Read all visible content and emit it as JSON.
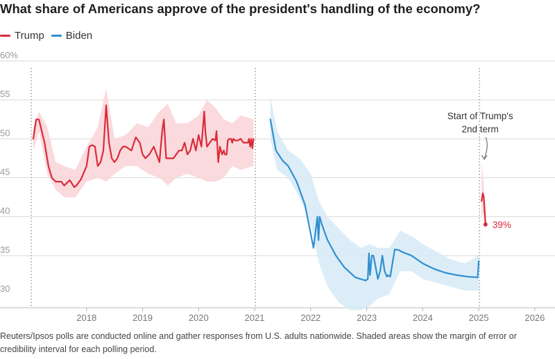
{
  "chart_data": {
    "type": "line",
    "title": "What share of Americans approve of the president's handling of the economy?",
    "footnote": "Reuters/Ipsos polls are conducted online and gather responses from U.S. adults nationwide. Shaded areas show the margin of error or credibility interval for each polling period.",
    "ylim": [
      30,
      60
    ],
    "yticks": [
      30,
      35,
      40,
      45,
      50,
      55,
      60
    ],
    "ytick_labels": [
      "30",
      "35",
      "40",
      "45",
      "50",
      "55",
      "60%"
    ],
    "xlim": [
      2017.0,
      2026.15
    ],
    "xticks": [
      2018,
      2019,
      2020,
      2021,
      2022,
      2023,
      2024,
      2025,
      2026
    ],
    "xtick_labels": [
      "2018",
      "2019",
      "2020",
      "2021",
      "2022",
      "2023",
      "2024",
      "2025",
      "2026"
    ],
    "term_starts": [
      2017.05,
      2021.05,
      2025.05
    ],
    "grid": true,
    "legend_position": "top-left",
    "colors": {
      "trump": "#d92b3a",
      "biden": "#2f8fd0",
      "trump_band": "#f9d4d7",
      "biden_band": "#d6eaf7",
      "grid": "#d9d9d9"
    },
    "annotation": {
      "text_line1": "Start of Trump's",
      "text_line2": "2nd term",
      "x": 2025.05
    },
    "end_label": {
      "text": "39%",
      "x": 2025.12,
      "y": 39
    },
    "series": [
      {
        "name": "Trump",
        "color": "#d92b3a",
        "segments": [
          {
            "x": [
              2017.05,
              2017.1,
              2017.15,
              2017.25,
              2017.32,
              2017.38,
              2017.45,
              2017.55,
              2017.6,
              2017.7,
              2017.78,
              2017.82,
              2017.9,
              2018.0,
              2018.05,
              2018.1,
              2018.15,
              2018.2,
              2018.25,
              2018.3,
              2018.35,
              2018.4,
              2018.45,
              2018.5,
              2018.55,
              2018.6,
              2018.65,
              2018.7,
              2018.8,
              2018.88,
              2018.95,
              2019.0,
              2019.05,
              2019.12,
              2019.2,
              2019.3,
              2019.35,
              2019.38,
              2019.42,
              2019.5,
              2019.55,
              2019.6,
              2019.65,
              2019.7,
              2019.75,
              2019.8,
              2019.85,
              2019.9,
              2019.95,
              2020.0,
              2020.05,
              2020.1,
              2020.12,
              2020.15,
              2020.2,
              2020.25,
              2020.3,
              2020.32,
              2020.35,
              2020.38,
              2020.42,
              2020.45,
              2020.47,
              2020.5,
              2020.52,
              2020.55,
              2020.58,
              2020.6,
              2020.62,
              2020.65,
              2020.7,
              2020.75,
              2020.8,
              2020.88,
              2020.9,
              2020.92,
              2020.94,
              2020.96,
              2020.98
            ],
            "y": [
              50,
              52.5,
              52.5,
              49.5,
              46.5,
              45,
              44.5,
              44.5,
              44,
              44.7,
              43.8,
              44,
              44.8,
              46.5,
              49,
              49.2,
              49,
              46.5,
              47,
              48.5,
              54.3,
              49.5,
              47.5,
              47,
              47.5,
              48.5,
              49,
              49,
              48.5,
              50.2,
              49.5,
              48,
              47.5,
              48,
              49,
              47,
              51,
              52.5,
              47.5,
              47.5,
              47.5,
              48,
              48.5,
              48.5,
              49.5,
              48,
              48.5,
              50,
              48.5,
              50.5,
              49,
              53.5,
              51,
              49,
              49.5,
              50,
              49.8,
              51,
              47,
              49,
              48,
              48.5,
              48,
              48,
              49.8,
              50,
              50,
              49.5,
              50,
              49.8,
              49.8,
              50,
              49.5,
              49.5,
              50,
              49,
              50,
              48.8,
              50
            ]
          },
          {
            "x": [
              2025.05,
              2025.07,
              2025.09,
              2025.12
            ],
            "y": [
              42,
              43,
              42.5,
              39
            ]
          }
        ]
      },
      {
        "name": "Biden",
        "color": "#2f8fd0",
        "segments": [
          {
            "x": [
              2021.28,
              2021.38,
              2021.5,
              2021.6,
              2021.75,
              2021.9,
              2022.05,
              2022.12,
              2022.14,
              2022.16,
              2022.18,
              2022.2,
              2022.3,
              2022.45,
              2022.6,
              2022.8,
              2022.98,
              2023.02,
              2023.04,
              2023.06,
              2023.09,
              2023.12,
              2023.16,
              2023.2,
              2023.24,
              2023.28,
              2023.32,
              2023.36,
              2023.38,
              2023.42,
              2023.5,
              2023.58,
              2023.62,
              2023.8,
              2024.0,
              2024.2,
              2024.4,
              2024.6,
              2024.8,
              2024.98,
              2025.0
            ],
            "y": [
              52.5,
              48.5,
              47.2,
              46.5,
              44.5,
              41.5,
              36,
              40,
              37,
              40,
              39.5,
              39,
              37,
              35,
              33.5,
              32.2,
              31.8,
              32,
              35.3,
              32.5,
              35,
              35,
              33.5,
              32,
              33,
              35,
              33,
              32.3,
              32.5,
              32.3,
              35.8,
              35.7,
              35.5,
              35,
              34,
              33.3,
              32.8,
              32.5,
              32.3,
              32.2,
              34.3
            ]
          }
        ]
      }
    ],
    "bands": [
      {
        "series": "Trump",
        "x": [
          2017.05,
          2017.15,
          2017.3,
          2017.45,
          2017.6,
          2017.8,
          2018.0,
          2018.2,
          2018.35,
          2018.5,
          2018.7,
          2018.9,
          2019.1,
          2019.3,
          2019.45,
          2019.6,
          2019.8,
          2020.0,
          2020.15,
          2020.3,
          2020.45,
          2020.6,
          2020.75,
          2020.98
        ],
        "upper": [
          51.5,
          53.5,
          51.5,
          47,
          46.5,
          46,
          49,
          51.5,
          56.5,
          50,
          50.5,
          52,
          51.5,
          53.5,
          54.5,
          52,
          52,
          53,
          55,
          54,
          52.5,
          52,
          53,
          52.5
        ],
        "lower": [
          48.5,
          51,
          45.5,
          43.5,
          42.5,
          42.5,
          44.5,
          45,
          44.5,
          45.5,
          46.5,
          46.5,
          45.5,
          45,
          44,
          45,
          45.5,
          45,
          44.5,
          44.5,
          45,
          46.5,
          46,
          46.5
        ]
      },
      {
        "series": "Trump",
        "x": [
          2025.05,
          2025.08,
          2025.12
        ],
        "upper": [
          47,
          45,
          41
        ],
        "lower": [
          40,
          40.5,
          38
        ]
      },
      {
        "series": "Biden",
        "x": [
          2021.28,
          2021.4,
          2021.6,
          2021.8,
          2022.0,
          2022.15,
          2022.3,
          2022.5,
          2022.7,
          2022.9,
          2023.05,
          2023.2,
          2023.4,
          2023.6,
          2023.8,
          2024.0,
          2024.25,
          2024.5,
          2024.75,
          2025.0
        ],
        "upper": [
          55.5,
          51,
          48.5,
          47.5,
          45.5,
          42,
          40,
          38.5,
          37,
          36,
          36.5,
          36,
          36,
          38.2,
          37.5,
          36.5,
          35.5,
          34.5,
          34,
          35
        ],
        "lower": [
          50,
          46,
          45,
          42.5,
          39,
          34,
          31,
          29,
          28,
          28,
          28.5,
          29.5,
          30,
          33,
          33,
          32,
          31.5,
          31,
          30.5,
          30.5
        ]
      }
    ]
  }
}
